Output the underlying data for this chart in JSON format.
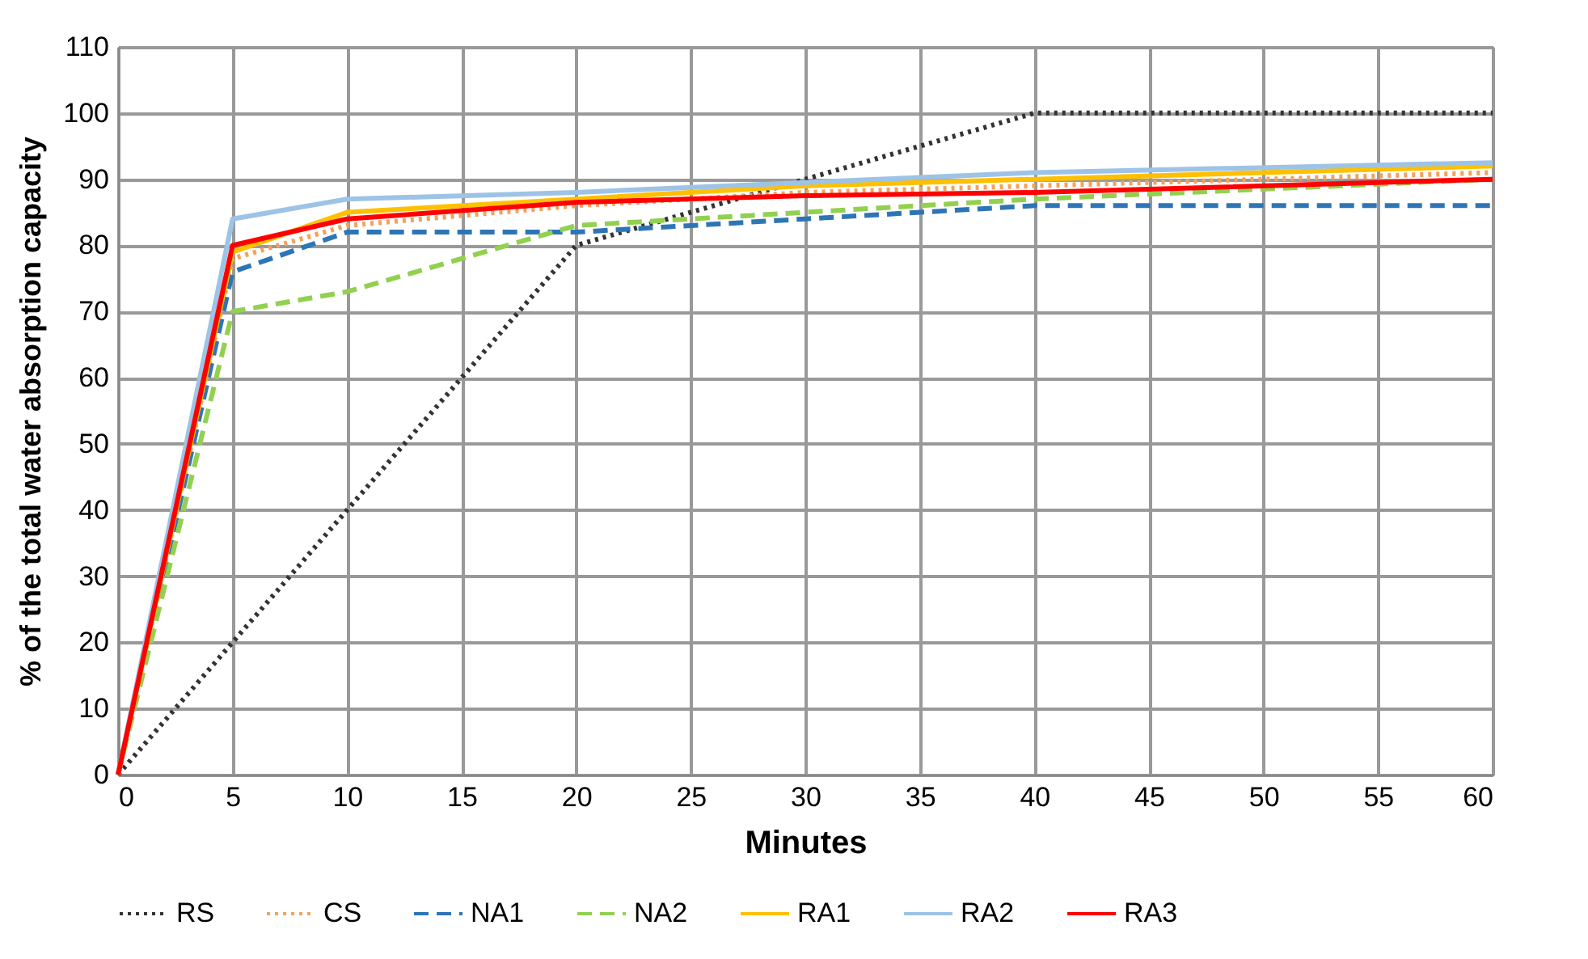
{
  "chart_data": {
    "type": "line",
    "xlabel": "Minutes",
    "ylabel": "% of the total water absorption capacity",
    "xlim": [
      0,
      60
    ],
    "ylim": [
      0,
      110
    ],
    "xticks": [
      0,
      5,
      10,
      15,
      20,
      25,
      30,
      35,
      40,
      45,
      50,
      55,
      60
    ],
    "yticks": [
      0,
      10,
      20,
      30,
      40,
      50,
      60,
      70,
      80,
      90,
      100,
      110
    ],
    "grid": true,
    "legend": "bottom",
    "marker": "none",
    "series": [
      {
        "name": "RS",
        "color": "#333333",
        "line_style": "dotted",
        "x": [
          0,
          5,
          10,
          20,
          40,
          60
        ],
        "values": [
          0,
          20,
          40,
          80,
          100,
          100
        ]
      },
      {
        "name": "CS",
        "color": "#f4a259",
        "line_style": "dotted",
        "x": [
          0,
          5,
          10,
          20,
          30,
          40,
          60
        ],
        "values": [
          0,
          78,
          83,
          86,
          88,
          89,
          91
        ]
      },
      {
        "name": "NA1",
        "color": "#2e75b6",
        "line_style": "dashed",
        "x": [
          0,
          5,
          10,
          20,
          30,
          40,
          60
        ],
        "values": [
          0,
          76,
          82,
          82,
          84,
          86,
          86
        ]
      },
      {
        "name": "NA2",
        "color": "#92d050",
        "line_style": "dashed",
        "x": [
          0,
          5,
          10,
          20,
          30,
          40,
          60
        ],
        "values": [
          0,
          70,
          73,
          83,
          85,
          87,
          90
        ]
      },
      {
        "name": "RA1",
        "color": "#ffc000",
        "line_style": "solid",
        "x": [
          0,
          5,
          10,
          20,
          30,
          40,
          60
        ],
        "values": [
          0,
          79,
          85,
          87,
          89,
          90,
          92
        ]
      },
      {
        "name": "RA2",
        "color": "#9dc3e6",
        "line_style": "solid",
        "x": [
          0,
          5,
          10,
          20,
          30,
          40,
          60
        ],
        "values": [
          0,
          84,
          87,
          88,
          89.5,
          91,
          92.5
        ]
      },
      {
        "name": "RA3",
        "color": "#ff0000",
        "line_style": "solid",
        "x": [
          0,
          5,
          10,
          20,
          30,
          40,
          60
        ],
        "values": [
          0,
          80,
          84,
          86.5,
          87.5,
          88,
          90
        ]
      }
    ]
  }
}
